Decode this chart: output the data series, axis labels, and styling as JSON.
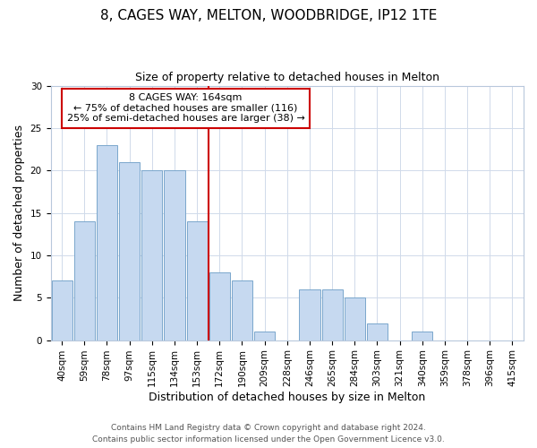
{
  "title": "8, CAGES WAY, MELTON, WOODBRIDGE, IP12 1TE",
  "subtitle": "Size of property relative to detached houses in Melton",
  "xlabel": "Distribution of detached houses by size in Melton",
  "ylabel": "Number of detached properties",
  "bar_labels": [
    "40sqm",
    "59sqm",
    "78sqm",
    "97sqm",
    "115sqm",
    "134sqm",
    "153sqm",
    "172sqm",
    "190sqm",
    "209sqm",
    "228sqm",
    "246sqm",
    "265sqm",
    "284sqm",
    "303sqm",
    "321sqm",
    "340sqm",
    "359sqm",
    "378sqm",
    "396sqm",
    "415sqm"
  ],
  "bar_values": [
    7,
    14,
    23,
    21,
    20,
    20,
    14,
    8,
    7,
    1,
    0,
    6,
    6,
    5,
    2,
    0,
    1,
    0,
    0,
    0,
    0
  ],
  "bar_color": "#c6d9f0",
  "bar_edge_color": "#7aa6cc",
  "vline_x_index": 7,
  "vline_color": "#cc0000",
  "annotation_line1": "8 CAGES WAY: 164sqm",
  "annotation_line2": "← 75% of detached houses are smaller (116)",
  "annotation_line3": "25% of semi-detached houses are larger (38) →",
  "annotation_box_color": "#ffffff",
  "annotation_box_edge": "#cc0000",
  "ylim": [
    0,
    30
  ],
  "yticks": [
    0,
    5,
    10,
    15,
    20,
    25,
    30
  ],
  "footer_line1": "Contains HM Land Registry data © Crown copyright and database right 2024.",
  "footer_line2": "Contains public sector information licensed under the Open Government Licence v3.0.",
  "title_fontsize": 11,
  "subtitle_fontsize": 9,
  "axis_label_fontsize": 9,
  "tick_fontsize": 7.5,
  "annotation_fontsize": 8,
  "footer_fontsize": 6.5
}
